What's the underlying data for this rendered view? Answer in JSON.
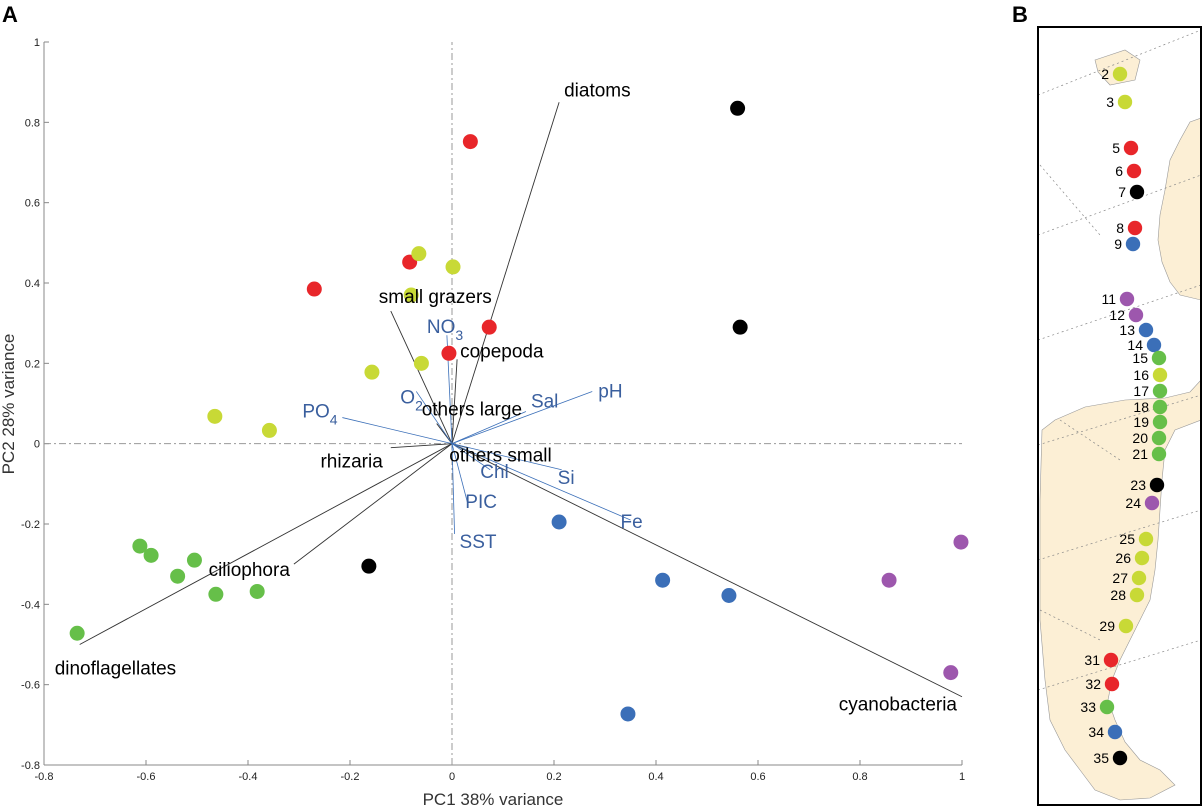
{
  "panels": {
    "a": "A",
    "b": "B"
  },
  "colors": {
    "yellowgreen": "#c8d936",
    "red": "#e8262a",
    "black": "#000000",
    "blue": "#3b6fb8",
    "green": "#66bf49",
    "purple": "#9d57ad",
    "env_text": "#3a5f9e",
    "land": "#fcefd5"
  },
  "chart_data": {
    "type": "scatter",
    "title": "",
    "xlabel": "PC1 38% variance",
    "ylabel": "PC2 28% variance",
    "xlim": [
      -0.8,
      1
    ],
    "ylim": [
      -0.8,
      1
    ],
    "xticks": [
      "-0.8",
      "-0.6",
      "-0.4",
      "-0.2",
      "0",
      "0.2",
      "0.4",
      "0.6",
      "0.8",
      "1"
    ],
    "yticks": [
      "1",
      "0.8",
      "0.6",
      "0.4",
      "0.2",
      "0",
      "-0.2",
      "-0.4",
      "-0.6",
      "-0.8"
    ],
    "points": [
      {
        "x": 0.56,
        "y": 0.835,
        "c": "black"
      },
      {
        "x": 0.565,
        "y": 0.29,
        "c": "black"
      },
      {
        "x": -0.163,
        "y": -0.305,
        "c": "black"
      },
      {
        "x": 0.036,
        "y": 0.752,
        "c": "red"
      },
      {
        "x": -0.083,
        "y": 0.452,
        "c": "red"
      },
      {
        "x": -0.27,
        "y": 0.385,
        "c": "red"
      },
      {
        "x": 0.073,
        "y": 0.29,
        "c": "red"
      },
      {
        "x": -0.006,
        "y": 0.225,
        "c": "red"
      },
      {
        "x": -0.065,
        "y": 0.473,
        "c": "yellowgreen"
      },
      {
        "x": 0.002,
        "y": 0.44,
        "c": "yellowgreen"
      },
      {
        "x": -0.08,
        "y": 0.37,
        "c": "yellowgreen"
      },
      {
        "x": -0.06,
        "y": 0.2,
        "c": "yellowgreen"
      },
      {
        "x": -0.157,
        "y": 0.178,
        "c": "yellowgreen"
      },
      {
        "x": -0.465,
        "y": 0.068,
        "c": "yellowgreen"
      },
      {
        "x": -0.358,
        "y": 0.033,
        "c": "yellowgreen"
      },
      {
        "x": 0.21,
        "y": -0.195,
        "c": "blue"
      },
      {
        "x": 0.413,
        "y": -0.34,
        "c": "blue"
      },
      {
        "x": 0.543,
        "y": -0.378,
        "c": "blue"
      },
      {
        "x": 0.345,
        "y": -0.673,
        "c": "blue"
      },
      {
        "x": 0.857,
        "y": -0.34,
        "c": "purple"
      },
      {
        "x": 0.998,
        "y": -0.245,
        "c": "purple"
      },
      {
        "x": 0.978,
        "y": -0.57,
        "c": "purple"
      },
      {
        "x": -0.612,
        "y": -0.255,
        "c": "green"
      },
      {
        "x": -0.59,
        "y": -0.278,
        "c": "green"
      },
      {
        "x": -0.505,
        "y": -0.29,
        "c": "green"
      },
      {
        "x": -0.538,
        "y": -0.33,
        "c": "green"
      },
      {
        "x": -0.463,
        "y": -0.375,
        "c": "green"
      },
      {
        "x": -0.382,
        "y": -0.368,
        "c": "green"
      },
      {
        "x": -0.735,
        "y": -0.472,
        "c": "green"
      }
    ],
    "taxa_vectors": [
      {
        "label": "diatoms",
        "x": 0.21,
        "y": 0.85
      },
      {
        "label": "small grazers",
        "x": -0.12,
        "y": 0.33
      },
      {
        "label": "copepoda",
        "x": 0.01,
        "y": 0.21
      },
      {
        "label": "others large",
        "x": -0.03,
        "y": 0.05
      },
      {
        "label": "others small",
        "x": 0.03,
        "y": -0.01
      },
      {
        "label": "rhizaria",
        "x": -0.12,
        "y": -0.01
      },
      {
        "label": "ciliophora",
        "x": -0.31,
        "y": -0.3
      },
      {
        "label": "dinoflagellates",
        "x": -0.73,
        "y": -0.5
      },
      {
        "label": "cyanobacteria",
        "x": 1.0,
        "y": -0.63
      }
    ],
    "env_vectors": [
      {
        "label": "NO",
        "sub": "3",
        "x": -0.01,
        "y": 0.27
      },
      {
        "label": "O",
        "sub": "2",
        "x": -0.07,
        "y": 0.13
      },
      {
        "label": "Sal",
        "x": 0.145,
        "y": 0.08
      },
      {
        "label": "pH",
        "x": 0.275,
        "y": 0.13
      },
      {
        "label": "PO",
        "sub": "4",
        "x": -0.215,
        "y": 0.065
      },
      {
        "label": "Si",
        "x": 0.215,
        "y": -0.065
      },
      {
        "label": "Chl",
        "x": 0.075,
        "y": -0.065
      },
      {
        "label": "PIC",
        "x": 0.03,
        "y": -0.145
      },
      {
        "label": "SST",
        "x": 0.005,
        "y": -0.225
      },
      {
        "label": "Fe",
        "x": 0.35,
        "y": -0.19
      }
    ]
  },
  "map": {
    "stations": [
      {
        "label": "2",
        "c": "yellowgreen"
      },
      {
        "label": "3",
        "c": "yellowgreen"
      },
      {
        "label": "5",
        "c": "red"
      },
      {
        "label": "6",
        "c": "red"
      },
      {
        "label": "7",
        "c": "black"
      },
      {
        "label": "8",
        "c": "red"
      },
      {
        "label": "9",
        "c": "blue"
      },
      {
        "label": "11",
        "c": "purple"
      },
      {
        "label": "12",
        "c": "purple"
      },
      {
        "label": "13",
        "c": "blue"
      },
      {
        "label": "14",
        "c": "blue"
      },
      {
        "label": "15",
        "c": "green"
      },
      {
        "label": "16",
        "c": "yellowgreen"
      },
      {
        "label": "17",
        "c": "green"
      },
      {
        "label": "18",
        "c": "green"
      },
      {
        "label": "19",
        "c": "green"
      },
      {
        "label": "20",
        "c": "green"
      },
      {
        "label": "21",
        "c": "green"
      },
      {
        "label": "23",
        "c": "black"
      },
      {
        "label": "24",
        "c": "purple"
      },
      {
        "label": "25",
        "c": "yellowgreen"
      },
      {
        "label": "26",
        "c": "yellowgreen"
      },
      {
        "label": "27",
        "c": "yellowgreen"
      },
      {
        "label": "28",
        "c": "yellowgreen"
      },
      {
        "label": "29",
        "c": "yellowgreen"
      },
      {
        "label": "31",
        "c": "red"
      },
      {
        "label": "32",
        "c": "red"
      },
      {
        "label": "33",
        "c": "green"
      },
      {
        "label": "34",
        "c": "blue"
      },
      {
        "label": "35",
        "c": "black"
      }
    ]
  }
}
